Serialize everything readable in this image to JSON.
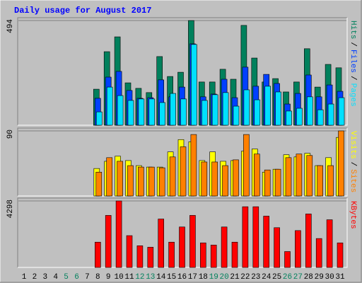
{
  "chart_data": {
    "type": "bar",
    "title": "Daily usage for August 2017",
    "categories": [
      "1",
      "2",
      "3",
      "4",
      "5",
      "6",
      "7",
      "8",
      "9",
      "10",
      "11",
      "12",
      "13",
      "14",
      "15",
      "16",
      "17",
      "18",
      "19",
      "20",
      "21",
      "22",
      "23",
      "24",
      "25",
      "26",
      "27",
      "28",
      "29",
      "30",
      "31"
    ],
    "category_colors": [
      "#000000",
      "#000000",
      "#000000",
      "#000000",
      "#00805c",
      "#00805c",
      "#000000",
      "#000000",
      "#000000",
      "#000000",
      "#000000",
      "#00805c",
      "#00805c",
      "#000000",
      "#000000",
      "#000000",
      "#000000",
      "#000000",
      "#00805c",
      "#00805c",
      "#000000",
      "#000000",
      "#000000",
      "#000000",
      "#000000",
      "#00805c",
      "#00805c",
      "#000000",
      "#000000",
      "#000000",
      "#000000"
    ],
    "legend_separator": "/",
    "panels": [
      {
        "ylim": [
          0,
          494
        ],
        "yticks": [
          494
        ],
        "series": [
          {
            "name": "Hits",
            "color": "#00805c",
            "values": [
              0,
              0,
              0,
              0,
              0,
              0,
              0,
              170,
              347,
              417,
              200,
              174,
              154,
              324,
              230,
              250,
              494,
              204,
              204,
              264,
              217,
              471,
              317,
              204,
              220,
              157,
              204,
              361,
              180,
              287,
              271
            ]
          },
          {
            "name": "Files",
            "color": "#0040ff",
            "values": [
              0,
              0,
              0,
              0,
              0,
              0,
              0,
              127,
              227,
              254,
              164,
              127,
              130,
              214,
              134,
              180,
              384,
              134,
              147,
              217,
              130,
              274,
              184,
              240,
              197,
              100,
              150,
              237,
              134,
              190,
              160
            ]
          },
          {
            "name": "Pages",
            "color": "#00e0ff",
            "values": [
              0,
              0,
              0,
              0,
              0,
              0,
              0,
              63,
              180,
              140,
              117,
              124,
              124,
              107,
              150,
              124,
              381,
              117,
              144,
              154,
              90,
              167,
              120,
              184,
              157,
              67,
              80,
              134,
              73,
              100,
              130
            ]
          }
        ]
      },
      {
        "ylim": [
          0,
          90
        ],
        "yticks": [
          90
        ],
        "series": [
          {
            "name": "Visits",
            "color": "#ffff00",
            "values": [
              0,
              0,
              0,
              0,
              0,
              0,
              0,
              38,
              48,
              55,
              49,
              42,
              40,
              40,
              61,
              78,
              75,
              49,
              61,
              48,
              49,
              62,
              65,
              33,
              37,
              57,
              54,
              59,
              42,
              53,
              81
            ]
          },
          {
            "name": "Sites",
            "color": "#ff8000",
            "values": [
              0,
              0,
              0,
              0,
              0,
              0,
              0,
              33,
              53,
              48,
              42,
              40,
              40,
              39,
              54,
              68,
              85,
              47,
              47,
              42,
              50,
              85,
              58,
              36,
              37,
              53,
              58,
              56,
              42,
              42,
              90
            ]
          }
        ]
      },
      {
        "ylim": [
          0,
          4298
        ],
        "yticks": [
          4298
        ],
        "series": [
          {
            "name": "KBytes",
            "color": "#ff0000",
            "values": [
              0,
              0,
              0,
              0,
              0,
              0,
              0,
              1635,
              3364,
              4298,
              2056,
              1402,
              1308,
              3130,
              1635,
              2616,
              3364,
              1588,
              1448,
              2616,
              1635,
              3924,
              3924,
              3317,
              2570,
              1028,
              2383,
              3457,
              1869,
              3083,
              1588
            ]
          }
        ]
      }
    ]
  }
}
